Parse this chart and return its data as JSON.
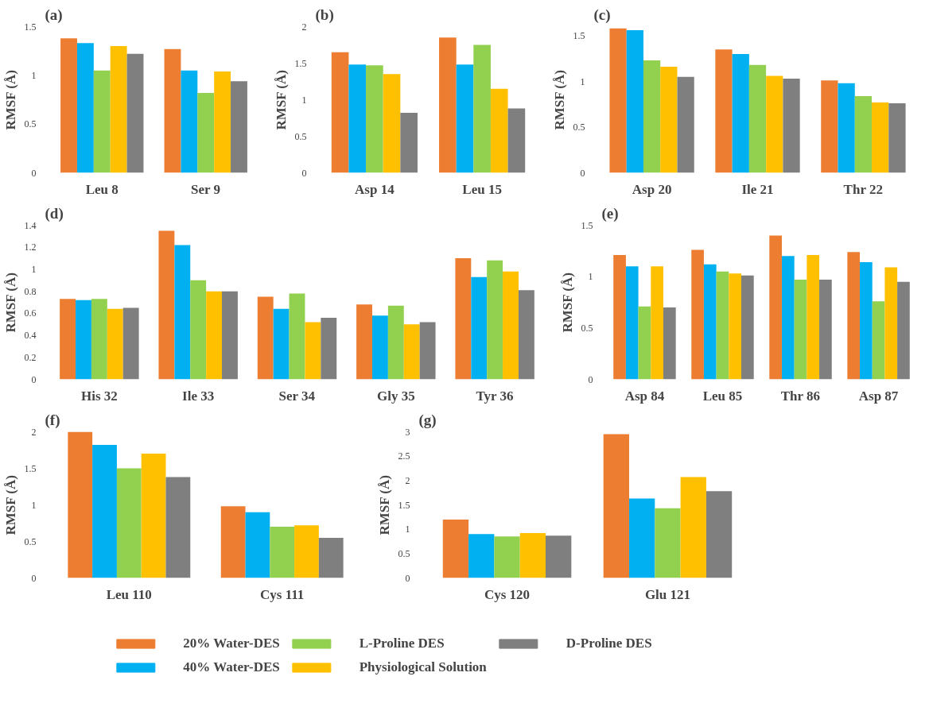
{
  "chart_data": [
    {
      "type": "bar",
      "title": "(a)",
      "ylabel": "RMSF (Å)",
      "categories": [
        "Leu 8",
        "Ser 9"
      ],
      "ylim": [
        0,
        1.5
      ],
      "yticks": [
        0,
        0.5,
        1,
        1.5
      ],
      "grid": false,
      "legend": false,
      "series": [
        {
          "color": "#ed7d31",
          "values": [
            1.38,
            1.27
          ]
        },
        {
          "color": "#00b0f0",
          "values": [
            1.33,
            1.05
          ]
        },
        {
          "color": "#92d050",
          "values": [
            1.05,
            0.82
          ]
        },
        {
          "color": "#ffc000",
          "values": [
            1.3,
            1.04
          ]
        },
        {
          "color": "#7f7f7f",
          "values": [
            1.22,
            0.94
          ]
        }
      ]
    },
    {
      "type": "bar",
      "title": "(b)",
      "ylabel": "RMSF (Å)",
      "categories": [
        "Asp 14",
        "Leu 15"
      ],
      "ylim": [
        0,
        2
      ],
      "yticks": [
        0,
        0.5,
        1,
        1.5,
        2
      ],
      "grid": false,
      "legend": false,
      "series": [
        {
          "color": "#ed7d31",
          "values": [
            1.65,
            1.85
          ]
        },
        {
          "color": "#00b0f0",
          "values": [
            1.48,
            1.48
          ]
        },
        {
          "color": "#92d050",
          "values": [
            1.47,
            1.75
          ]
        },
        {
          "color": "#ffc000",
          "values": [
            1.35,
            1.15
          ]
        },
        {
          "color": "#7f7f7f",
          "values": [
            0.82,
            0.88
          ]
        }
      ]
    },
    {
      "type": "bar",
      "title": "(c)",
      "ylabel": "RMSF (Å)",
      "categories": [
        "Asp 20",
        "Ile 21",
        "Thr 22"
      ],
      "ylim": [
        0,
        1.6
      ],
      "yticks": [
        0,
        0.5,
        1,
        1.5
      ],
      "grid": false,
      "legend": false,
      "series": [
        {
          "color": "#ed7d31",
          "values": [
            1.58,
            1.35,
            1.01
          ]
        },
        {
          "color": "#00b0f0",
          "values": [
            1.56,
            1.3,
            0.98
          ]
        },
        {
          "color": "#92d050",
          "values": [
            1.23,
            1.18,
            0.84
          ]
        },
        {
          "color": "#ffc000",
          "values": [
            1.16,
            1.06,
            0.77
          ]
        },
        {
          "color": "#7f7f7f",
          "values": [
            1.05,
            1.03,
            0.76
          ]
        }
      ]
    },
    {
      "type": "bar",
      "title": "(d)",
      "ylabel": "RMSF (Å)",
      "categories": [
        "His 32",
        "Ile 33",
        "Ser 34",
        "Gly 35",
        "Tyr 36"
      ],
      "ylim": [
        0,
        1.4
      ],
      "yticks": [
        0,
        0.2,
        0.4,
        0.6,
        0.8,
        1,
        1.2,
        1.4
      ],
      "grid": false,
      "legend": false,
      "series": [
        {
          "color": "#ed7d31",
          "values": [
            0.73,
            1.35,
            0.75,
            0.68,
            1.1
          ]
        },
        {
          "color": "#00b0f0",
          "values": [
            0.72,
            1.22,
            0.64,
            0.58,
            0.93
          ]
        },
        {
          "color": "#92d050",
          "values": [
            0.73,
            0.9,
            0.78,
            0.67,
            1.08
          ]
        },
        {
          "color": "#ffc000",
          "values": [
            0.64,
            0.8,
            0.52,
            0.5,
            0.98
          ]
        },
        {
          "color": "#7f7f7f",
          "values": [
            0.65,
            0.8,
            0.56,
            0.52,
            0.81
          ]
        }
      ]
    },
    {
      "type": "bar",
      "title": "(e)",
      "ylabel": "RMSF (Å)",
      "categories": [
        "Asp 84",
        "Leu 85",
        "Thr 86",
        "Asp 87"
      ],
      "ylim": [
        0,
        1.5
      ],
      "yticks": [
        0,
        0.5,
        1,
        1.5
      ],
      "grid": false,
      "legend": false,
      "series": [
        {
          "color": "#ed7d31",
          "values": [
            1.21,
            1.26,
            1.4,
            1.24
          ]
        },
        {
          "color": "#00b0f0",
          "values": [
            1.1,
            1.12,
            1.2,
            1.14
          ]
        },
        {
          "color": "#92d050",
          "values": [
            0.71,
            1.05,
            0.97,
            0.76
          ]
        },
        {
          "color": "#ffc000",
          "values": [
            1.1,
            1.03,
            1.21,
            1.09
          ]
        },
        {
          "color": "#7f7f7f",
          "values": [
            0.7,
            1.01,
            0.97,
            0.95
          ]
        }
      ]
    },
    {
      "type": "bar",
      "title": "(f)",
      "ylabel": "RMSF (Å)",
      "categories": [
        "Leu 110",
        "Cys 111"
      ],
      "ylim": [
        0,
        2
      ],
      "yticks": [
        0,
        0.5,
        1,
        1.5,
        2
      ],
      "grid": false,
      "legend": false,
      "series": [
        {
          "color": "#ed7d31",
          "values": [
            2.0,
            0.98
          ]
        },
        {
          "color": "#00b0f0",
          "values": [
            1.82,
            0.9
          ]
        },
        {
          "color": "#92d050",
          "values": [
            1.5,
            0.7
          ]
        },
        {
          "color": "#ffc000",
          "values": [
            1.7,
            0.72
          ]
        },
        {
          "color": "#7f7f7f",
          "values": [
            1.38,
            0.55
          ]
        }
      ]
    },
    {
      "type": "bar",
      "title": "(g)",
      "ylabel": "RMSF (Å)",
      "categories": [
        "Cys 120",
        "Glu 121"
      ],
      "ylim": [
        0,
        3
      ],
      "yticks": [
        0,
        0.5,
        1,
        1.5,
        2,
        2.5,
        3
      ],
      "grid": false,
      "legend": "bottom",
      "series": [
        {
          "name": "20% Water-DES",
          "color": "#ed7d31",
          "values": [
            1.2,
            2.95
          ]
        },
        {
          "name": "40% Water-DES",
          "color": "#00b0f0",
          "values": [
            0.9,
            1.63
          ]
        },
        {
          "name": "L-Proline DES",
          "color": "#92d050",
          "values": [
            0.85,
            1.43
          ]
        },
        {
          "name": "Physiological Solution",
          "color": "#ffc000",
          "values": [
            0.92,
            2.07
          ]
        },
        {
          "name": "D-Proline DES",
          "color": "#7f7f7f",
          "values": [
            0.87,
            1.78
          ]
        }
      ]
    }
  ]
}
